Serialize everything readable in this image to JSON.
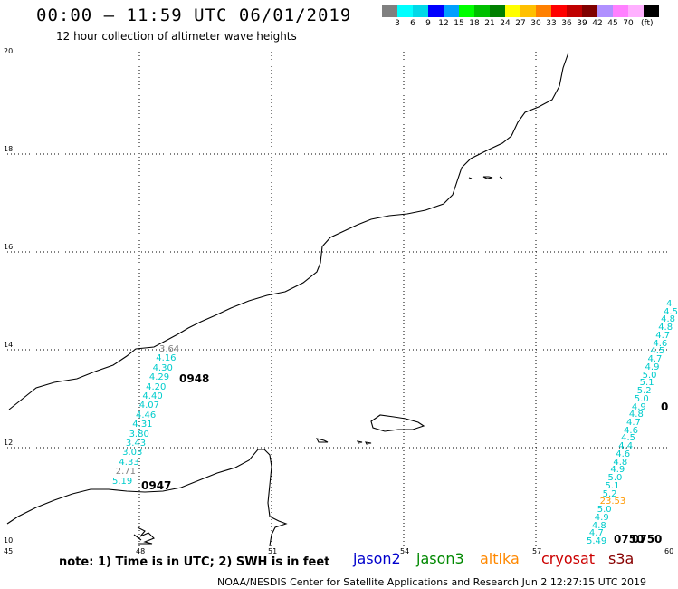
{
  "title": "00:00 – 11:59 UTC 06/01/2019",
  "subtitle": "12 hour collection of altimeter wave heights",
  "legend": {
    "colors": [
      "#808080",
      "#00ffff",
      "#00d8e8",
      "#0000ff",
      "#00a0ff",
      "#00ff00",
      "#00c000",
      "#008000",
      "#ffff00",
      "#ffc000",
      "#ff8000",
      "#ff0000",
      "#c00000",
      "#800000",
      "#b090ff",
      "#ff80ff",
      "#ffb0ff",
      "#000000"
    ],
    "ticks": [
      "3",
      "6",
      "9",
      "12",
      "15",
      "18",
      "21",
      "24",
      "27",
      "30",
      "33",
      "36",
      "39",
      "42",
      "45",
      "70"
    ],
    "unit": "(ft)"
  },
  "y_axis_labels": [
    "20",
    "18",
    "16",
    "14",
    "12",
    "10"
  ],
  "x_axis_labels": [
    "45",
    "48",
    "51",
    "54",
    "57",
    "60"
  ],
  "note": "note: 1) Time is in UTC; 2) SWH is in feet",
  "satellites": [
    {
      "name": "jason2",
      "color": "#0000cc"
    },
    {
      "name": "jason3",
      "color": "#008800"
    },
    {
      "name": "altika",
      "color": "#ff8800"
    },
    {
      "name": "cryosat",
      "color": "#cc0000"
    },
    {
      "name": "s3a",
      "color": "#880000"
    }
  ],
  "credit": "NOAA/NESDIS Center for Satellite Applications and Research    Jun  2 12:27:15 UTC 2019",
  "track_left": {
    "values": [
      "3.64",
      "4.16",
      "4.30",
      "4.29",
      "4.20",
      "4.40",
      "4.07",
      "4.46",
      "4.31",
      "3.80",
      "3.43",
      "3.03",
      "4.33",
      "2.71",
      "5.19"
    ],
    "pass_times": [
      "0948",
      "0947"
    ]
  },
  "track_right": {
    "values": [
      "4",
      "4.5",
      "4.8",
      "4.8",
      "4.7",
      "4.6",
      "4.5",
      "4.7",
      "4.9",
      "5.0",
      "5.1",
      "5.2",
      "5.0",
      "4.9",
      "4.8",
      "4.7",
      "4.6",
      "4.5",
      "4.4",
      "4.6",
      "4.8",
      "4.9",
      "5.0",
      "5.1",
      "5.2",
      "23.53",
      "5.0",
      "4.9",
      "4.8",
      "4.7",
      "5.49"
    ],
    "pass_times": [
      "0750",
      "0750",
      "0"
    ]
  },
  "colors": {
    "track": "#00cccc",
    "coast": "#000000",
    "jason3_time": "#008000",
    "jason2_time": "#0000cc",
    "altika_val": "#ff9900",
    "grey_val": "#808080"
  }
}
